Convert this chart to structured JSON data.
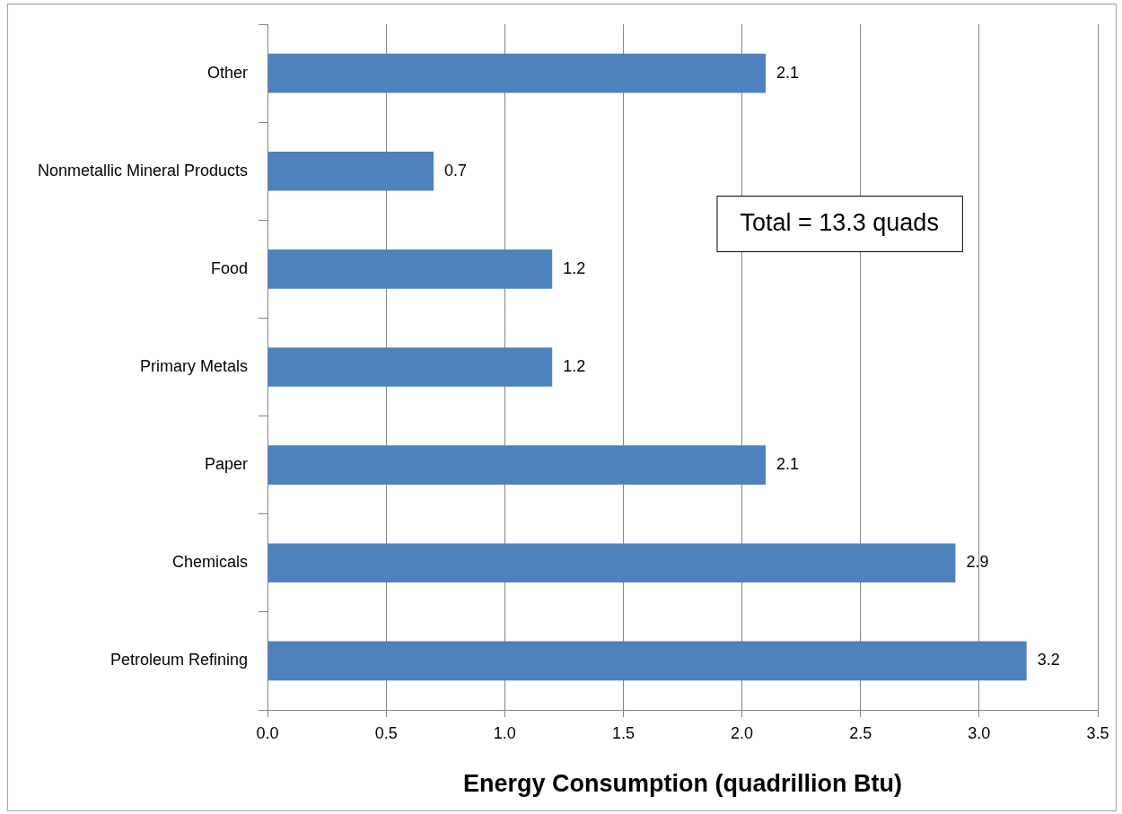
{
  "chart_data": {
    "type": "bar",
    "orientation": "horizontal",
    "categories": [
      "Other",
      "Nonmetallic Mineral Products",
      "Food",
      "Primary Metals",
      "Paper",
      "Chemicals",
      "Petroleum Refining"
    ],
    "values": [
      2.1,
      0.7,
      1.2,
      1.2,
      2.1,
      2.9,
      3.2
    ],
    "color": "#4f81bd",
    "xlabel": "Energy Consumption (quadrillion Btu)",
    "xlim": [
      0,
      3.5
    ],
    "xticks": [
      {
        "value": 0,
        "label": "0.0"
      },
      {
        "value": 0.5,
        "label": "0.5"
      },
      {
        "value": 1,
        "label": "1.0"
      },
      {
        "value": 1.5,
        "label": "1.5"
      },
      {
        "value": 2,
        "label": "2.0"
      },
      {
        "value": 2.5,
        "label": "2.5"
      },
      {
        "value": 3,
        "label": "3.0"
      },
      {
        "value": 3.5,
        "label": "3.5"
      }
    ],
    "grid": "x",
    "data_labels": true,
    "annotations": [
      "Total = 13.3 quads"
    ]
  }
}
